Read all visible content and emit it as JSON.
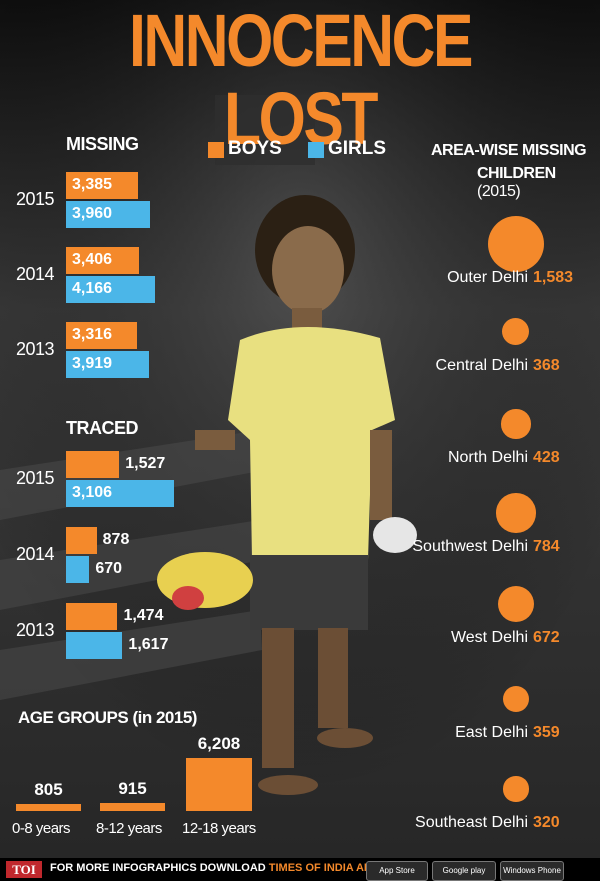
{
  "title": "INNOCENCE LOST",
  "colors": {
    "boys": "#f4892b",
    "girls": "#4bb6e8",
    "accent": "#f4892b"
  },
  "legend": {
    "boys": "BOYS",
    "girls": "GIRLS"
  },
  "sections": {
    "missing": "MISSING",
    "traced": "TRACED",
    "age_groups": "AGE GROUPS (in 2015)",
    "area_title_line1": "AREA-WISE MISSING",
    "area_title_line2": "CHILDREN",
    "area_title_year": "(2015)"
  },
  "chart_data": [
    {
      "type": "bar",
      "title": "MISSING",
      "categories": [
        "2015",
        "2014",
        "2013"
      ],
      "series": [
        {
          "name": "BOYS",
          "values": [
            3385,
            3406,
            3316
          ],
          "labels": [
            "3,385",
            "3,406",
            "3,316"
          ]
        },
        {
          "name": "GIRLS",
          "values": [
            3960,
            4166,
            3919
          ],
          "labels": [
            "3,960",
            "4,166",
            "3,919"
          ]
        }
      ]
    },
    {
      "type": "bar",
      "title": "TRACED",
      "categories": [
        "2015",
        "2014",
        "2013"
      ],
      "series": [
        {
          "name": "BOYS",
          "values": [
            1527,
            878,
            1474
          ],
          "labels": [
            "1,527",
            "878",
            "1,474"
          ]
        },
        {
          "name": "GIRLS",
          "values": [
            3106,
            670,
            1617
          ],
          "labels": [
            "3,106",
            "670",
            "1,617"
          ]
        }
      ]
    },
    {
      "type": "bar",
      "title": "AGE GROUPS (in 2015)",
      "categories": [
        "0-8 years",
        "8-12 years",
        "12-18 years"
      ],
      "values": [
        805,
        915,
        6208
      ],
      "labels": [
        "805",
        "915",
        "6,208"
      ]
    },
    {
      "type": "scatter",
      "title": "AREA-WISE MISSING CHILDREN (2015)",
      "categories": [
        "Outer Delhi",
        "Central Delhi",
        "North Delhi",
        "Southwest Delhi",
        "West Delhi",
        "East Delhi",
        "Southeast Delhi"
      ],
      "values": [
        1583,
        368,
        428,
        784,
        672,
        359,
        320
      ],
      "labels": [
        "1,583",
        "368",
        "428",
        "784",
        "672",
        "359",
        "320"
      ]
    }
  ],
  "footer": {
    "badge": "TOI",
    "text_prefix": "FOR MORE  INFOGRAPHICS DOWNLOAD",
    "text_app": "TIMES OF INDIA  APP",
    "store1": "App Store",
    "store2": "Google play",
    "store3": "Windows Phone"
  }
}
